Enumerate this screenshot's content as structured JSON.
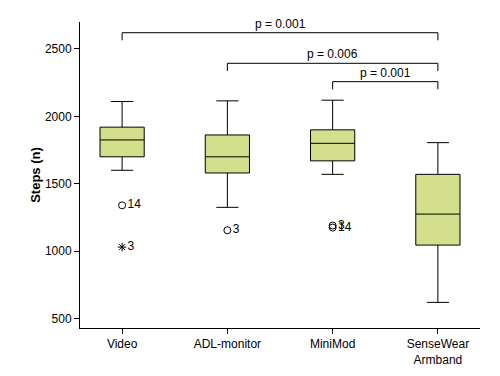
{
  "chart_data": {
    "type": "box",
    "y_label": "Steps (n)",
    "color": "#d4df8b",
    "categories": [
      "Video",
      "ADL-monitor",
      "MiniMod",
      "SenseWear Armband"
    ],
    "lower_whisker": [
      1600,
      1325,
      1570,
      620
    ],
    "q1": [
      1700,
      1580,
      1670,
      1045
    ],
    "median": [
      1825,
      1700,
      1800,
      1275
    ],
    "q3": [
      1920,
      1862,
      1900,
      1570
    ],
    "upper_whisker": [
      2110,
      2115,
      2120,
      1805
    ],
    "outliers": [
      {
        "category": "Video",
        "value": 1340,
        "label": "14",
        "marker": "circle"
      },
      {
        "category": "Video",
        "value": 1030,
        "label": "3",
        "marker": "star"
      },
      {
        "category": "ADL-monitor",
        "value": 1155,
        "label": "3",
        "marker": "circle"
      },
      {
        "category": "MiniMod",
        "value": 1190,
        "label": "3",
        "marker": "circle"
      },
      {
        "category": "MiniMod",
        "value": 1175,
        "label": "14",
        "marker": "circle"
      }
    ],
    "annotations": [
      {
        "from": "Video",
        "to": "SenseWear Armband",
        "text": "p = 0.001"
      },
      {
        "from": "ADL-monitor",
        "to": "SenseWear Armband",
        "text": "p = 0.006"
      },
      {
        "from": "MiniMod",
        "to": "SenseWear Armband",
        "text": "p = 0.001"
      }
    ],
    "ylim": [
      430,
      2700
    ],
    "yticks": [
      500,
      1000,
      1500,
      2000,
      2500
    ],
    "grid": false
  }
}
